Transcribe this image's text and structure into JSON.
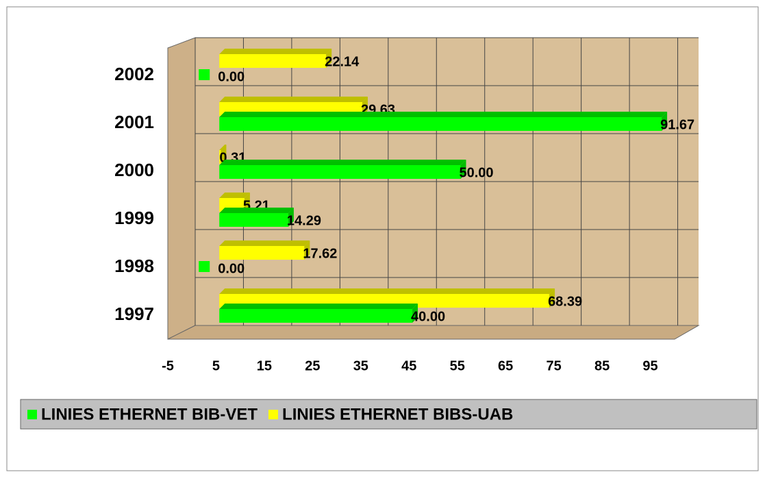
{
  "chart_data": {
    "type": "bar3d-horizontal",
    "categories": [
      "1997",
      "1998",
      "1999",
      "2000",
      "2001",
      "2002"
    ],
    "series": [
      {
        "name": "LINIES ETHERNET BIB-VET",
        "color": "#00ff00",
        "values": [
          40,
          0,
          14.29,
          50,
          91.67,
          0
        ],
        "value_labels": [
          "40.00",
          "0.00",
          "14.29",
          "50.00",
          "91.67",
          "0.00"
        ]
      },
      {
        "name": "LINIES ETHERNET BIBS-UAB",
        "color": "#ffff00",
        "values": [
          68.39,
          17.62,
          5.21,
          0.31,
          29.63,
          22.14
        ],
        "value_labels": [
          "68.39",
          "17.62",
          "5.21",
          "0.31",
          "29.63",
          "22.14"
        ]
      }
    ],
    "xlim": [
      -5,
      105
    ],
    "xticks": [
      -5,
      5,
      15,
      25,
      35,
      45,
      55,
      65,
      75,
      85,
      95
    ],
    "grid": true,
    "legend": "bottom"
  }
}
